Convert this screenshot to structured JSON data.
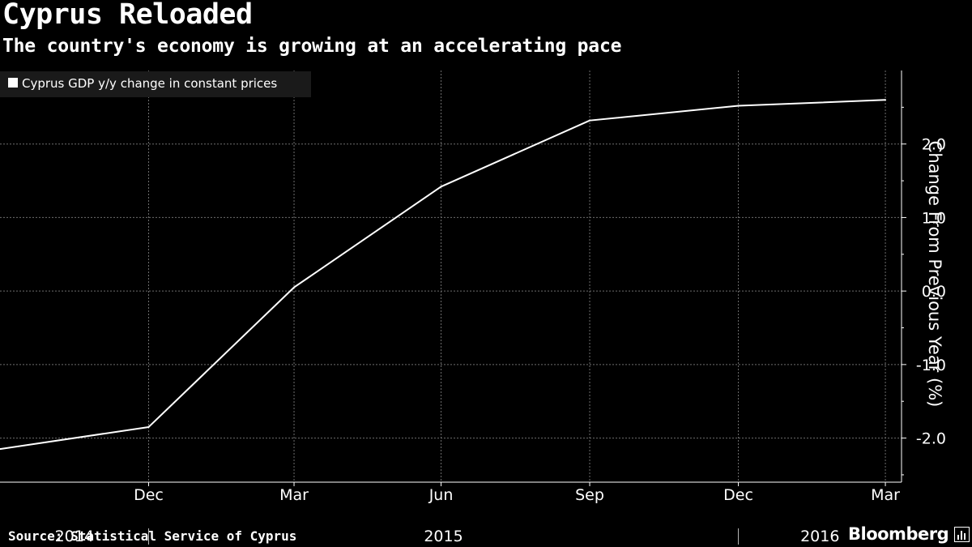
{
  "header": {
    "title": "Cyprus Reloaded",
    "subtitle": "The country's economy is growing at an accelerating pace"
  },
  "footer": {
    "source": "Source: Statistical Service of Cyprus",
    "brand": "Bloomberg"
  },
  "brand_icon": "bar-chart-icon",
  "colors": {
    "background": "#000000",
    "line": "#ffffff",
    "grid": "#6e6e6e",
    "legend_bg": "#1a1a1a"
  },
  "chart_data": {
    "type": "line",
    "title": "",
    "xlabel": "",
    "ylabel": "Change From Previous Year (%)",
    "y_axis_side": "right",
    "ylim": [
      -2.6,
      3.0
    ],
    "yticks": [
      -2.0,
      -1.0,
      0.0,
      1.0,
      2.0
    ],
    "ytick_labels": [
      "-2.0",
      "-1.0",
      "0.0",
      "1.0",
      "2.0"
    ],
    "xlim": [
      "2014-09-30",
      "2016-04-10"
    ],
    "x_ticks": [
      {
        "date": "2014-12-31",
        "label": "Dec"
      },
      {
        "date": "2015-03-31",
        "label": "Mar"
      },
      {
        "date": "2015-06-30",
        "label": "Jun"
      },
      {
        "date": "2015-09-30",
        "label": "Sep"
      },
      {
        "date": "2015-12-31",
        "label": "Dec"
      },
      {
        "date": "2016-03-31",
        "label": "Mar"
      }
    ],
    "year_labels": [
      {
        "label": "2014",
        "from": "2014-09-30",
        "to": "2014-12-31"
      },
      {
        "label": "2015",
        "from": "2014-12-31",
        "to": "2015-12-31"
      },
      {
        "label": "2016",
        "from": "2015-12-31",
        "to": "2016-04-10"
      }
    ],
    "grid": true,
    "legend_position": "top-left",
    "series": [
      {
        "name": "Cyprus GDP y/y change in constant prices",
        "color": "#ffffff",
        "x": [
          "2014-09-30",
          "2014-12-31",
          "2015-03-31",
          "2015-06-30",
          "2015-09-30",
          "2015-12-31",
          "2016-03-31"
        ],
        "y": [
          -2.15,
          -1.85,
          0.05,
          1.42,
          2.32,
          2.52,
          2.6
        ]
      }
    ]
  }
}
